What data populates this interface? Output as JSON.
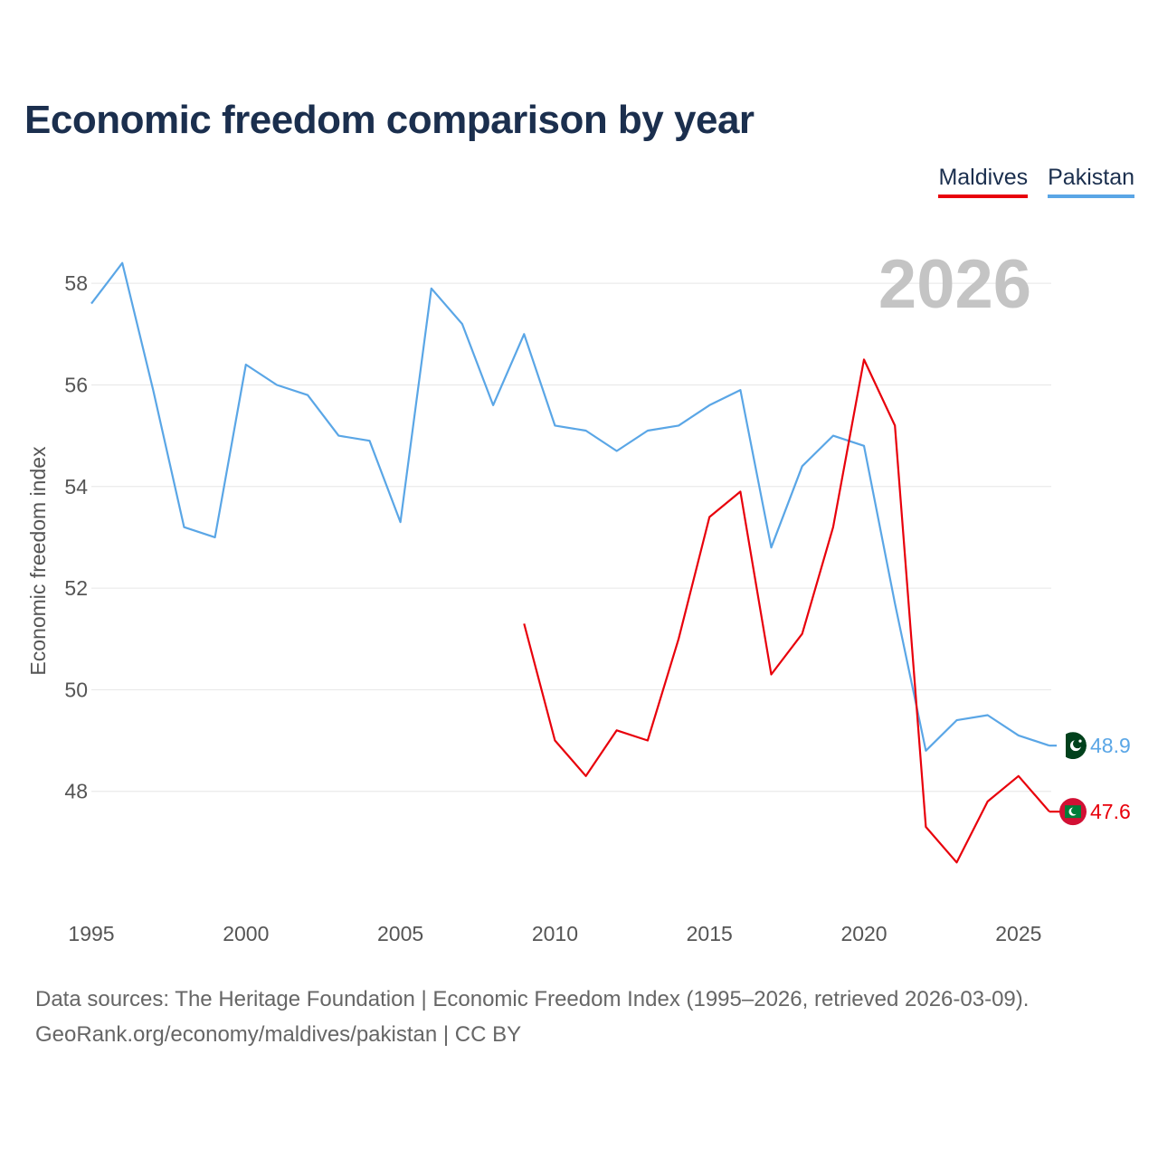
{
  "header": {
    "title": "Economic freedom comparison by year"
  },
  "legend": [
    {
      "label": "Maldives",
      "color": "#e8000b"
    },
    {
      "label": "Pakistan",
      "color": "#5aa6e6"
    }
  ],
  "year_watermark": "2026",
  "chart_data": {
    "type": "line",
    "title": "Economic freedom comparison by year",
    "xlabel": "",
    "ylabel": "Economic freedom index",
    "xlim": [
      1995,
      2026
    ],
    "ylim": [
      46,
      59
    ],
    "x_ticks": [
      "1995",
      "2000",
      "2005",
      "2010",
      "2015",
      "2020",
      "2025"
    ],
    "y_ticks": [
      "48",
      "50",
      "52",
      "54",
      "56",
      "58"
    ],
    "grid": true,
    "series": [
      {
        "name": "Pakistan",
        "color": "#5aa6e6",
        "x": [
          1995,
          1996,
          1997,
          1998,
          1999,
          2000,
          2001,
          2002,
          2003,
          2004,
          2005,
          2006,
          2007,
          2008,
          2009,
          2010,
          2011,
          2012,
          2013,
          2014,
          2015,
          2016,
          2017,
          2018,
          2019,
          2020,
          2021,
          2022,
          2023,
          2024,
          2025,
          2026
        ],
        "values": [
          57.6,
          58.4,
          55.9,
          53.2,
          53.0,
          56.4,
          56.0,
          55.8,
          55.0,
          54.9,
          53.3,
          57.9,
          57.2,
          55.6,
          57.0,
          55.2,
          55.1,
          54.7,
          55.1,
          55.2,
          55.6,
          55.9,
          52.8,
          54.4,
          55.0,
          54.8,
          51.7,
          48.8,
          49.4,
          49.5,
          49.1,
          48.9
        ],
        "end_label": "48.9",
        "flag": "pakistan-flag-icon"
      },
      {
        "name": "Maldives",
        "color": "#e8000b",
        "x": [
          2009,
          2010,
          2011,
          2012,
          2013,
          2014,
          2015,
          2016,
          2017,
          2018,
          2019,
          2020,
          2021,
          2022,
          2023,
          2024,
          2025,
          2026
        ],
        "values": [
          51.3,
          49.0,
          48.3,
          49.2,
          49.0,
          51.0,
          53.4,
          53.9,
          50.3,
          51.1,
          53.2,
          56.5,
          55.2,
          47.3,
          46.6,
          47.8,
          48.3,
          47.6
        ],
        "end_label": "47.6",
        "flag": "maldives-flag-icon"
      }
    ]
  },
  "footer": {
    "line1": "Data sources: The Heritage Foundation | Economic Freedom Index (1995–2026, retrieved 2026-03-09).",
    "line2": "GeoRank.org/economy/maldives/pakistan | CC BY"
  }
}
